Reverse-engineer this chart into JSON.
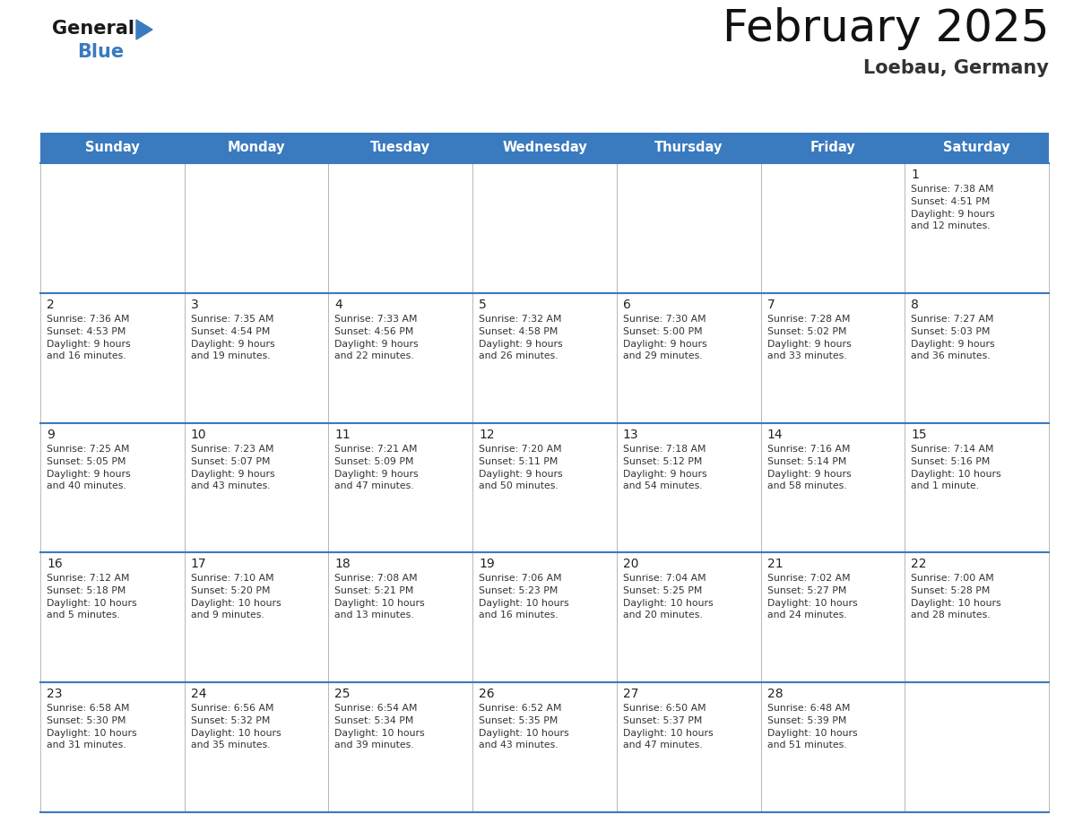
{
  "title": "February 2025",
  "subtitle": "Loebau, Germany",
  "header_bg_color": "#3a7abf",
  "header_text_color": "#ffffff",
  "day_headers": [
    "Sunday",
    "Monday",
    "Tuesday",
    "Wednesday",
    "Thursday",
    "Friday",
    "Saturday"
  ],
  "days": [
    {
      "day": 1,
      "col": 6,
      "row": 0,
      "sunrise": "7:38 AM",
      "sunset": "4:51 PM",
      "daylight": "9 hours and 12 minutes"
    },
    {
      "day": 2,
      "col": 0,
      "row": 1,
      "sunrise": "7:36 AM",
      "sunset": "4:53 PM",
      "daylight": "9 hours and 16 minutes"
    },
    {
      "day": 3,
      "col": 1,
      "row": 1,
      "sunrise": "7:35 AM",
      "sunset": "4:54 PM",
      "daylight": "9 hours and 19 minutes"
    },
    {
      "day": 4,
      "col": 2,
      "row": 1,
      "sunrise": "7:33 AM",
      "sunset": "4:56 PM",
      "daylight": "9 hours and 22 minutes"
    },
    {
      "day": 5,
      "col": 3,
      "row": 1,
      "sunrise": "7:32 AM",
      "sunset": "4:58 PM",
      "daylight": "9 hours and 26 minutes"
    },
    {
      "day": 6,
      "col": 4,
      "row": 1,
      "sunrise": "7:30 AM",
      "sunset": "5:00 PM",
      "daylight": "9 hours and 29 minutes"
    },
    {
      "day": 7,
      "col": 5,
      "row": 1,
      "sunrise": "7:28 AM",
      "sunset": "5:02 PM",
      "daylight": "9 hours and 33 minutes"
    },
    {
      "day": 8,
      "col": 6,
      "row": 1,
      "sunrise": "7:27 AM",
      "sunset": "5:03 PM",
      "daylight": "9 hours and 36 minutes"
    },
    {
      "day": 9,
      "col": 0,
      "row": 2,
      "sunrise": "7:25 AM",
      "sunset": "5:05 PM",
      "daylight": "9 hours and 40 minutes"
    },
    {
      "day": 10,
      "col": 1,
      "row": 2,
      "sunrise": "7:23 AM",
      "sunset": "5:07 PM",
      "daylight": "9 hours and 43 minutes"
    },
    {
      "day": 11,
      "col": 2,
      "row": 2,
      "sunrise": "7:21 AM",
      "sunset": "5:09 PM",
      "daylight": "9 hours and 47 minutes"
    },
    {
      "day": 12,
      "col": 3,
      "row": 2,
      "sunrise": "7:20 AM",
      "sunset": "5:11 PM",
      "daylight": "9 hours and 50 minutes"
    },
    {
      "day": 13,
      "col": 4,
      "row": 2,
      "sunrise": "7:18 AM",
      "sunset": "5:12 PM",
      "daylight": "9 hours and 54 minutes"
    },
    {
      "day": 14,
      "col": 5,
      "row": 2,
      "sunrise": "7:16 AM",
      "sunset": "5:14 PM",
      "daylight": "9 hours and 58 minutes"
    },
    {
      "day": 15,
      "col": 6,
      "row": 2,
      "sunrise": "7:14 AM",
      "sunset": "5:16 PM",
      "daylight": "10 hours and 1 minute"
    },
    {
      "day": 16,
      "col": 0,
      "row": 3,
      "sunrise": "7:12 AM",
      "sunset": "5:18 PM",
      "daylight": "10 hours and 5 minutes"
    },
    {
      "day": 17,
      "col": 1,
      "row": 3,
      "sunrise": "7:10 AM",
      "sunset": "5:20 PM",
      "daylight": "10 hours and 9 minutes"
    },
    {
      "day": 18,
      "col": 2,
      "row": 3,
      "sunrise": "7:08 AM",
      "sunset": "5:21 PM",
      "daylight": "10 hours and 13 minutes"
    },
    {
      "day": 19,
      "col": 3,
      "row": 3,
      "sunrise": "7:06 AM",
      "sunset": "5:23 PM",
      "daylight": "10 hours and 16 minutes"
    },
    {
      "day": 20,
      "col": 4,
      "row": 3,
      "sunrise": "7:04 AM",
      "sunset": "5:25 PM",
      "daylight": "10 hours and 20 minutes"
    },
    {
      "day": 21,
      "col": 5,
      "row": 3,
      "sunrise": "7:02 AM",
      "sunset": "5:27 PM",
      "daylight": "10 hours and 24 minutes"
    },
    {
      "day": 22,
      "col": 6,
      "row": 3,
      "sunrise": "7:00 AM",
      "sunset": "5:28 PM",
      "daylight": "10 hours and 28 minutes"
    },
    {
      "day": 23,
      "col": 0,
      "row": 4,
      "sunrise": "6:58 AM",
      "sunset": "5:30 PM",
      "daylight": "10 hours and 31 minutes"
    },
    {
      "day": 24,
      "col": 1,
      "row": 4,
      "sunrise": "6:56 AM",
      "sunset": "5:32 PM",
      "daylight": "10 hours and 35 minutes"
    },
    {
      "day": 25,
      "col": 2,
      "row": 4,
      "sunrise": "6:54 AM",
      "sunset": "5:34 PM",
      "daylight": "10 hours and 39 minutes"
    },
    {
      "day": 26,
      "col": 3,
      "row": 4,
      "sunrise": "6:52 AM",
      "sunset": "5:35 PM",
      "daylight": "10 hours and 43 minutes"
    },
    {
      "day": 27,
      "col": 4,
      "row": 4,
      "sunrise": "6:50 AM",
      "sunset": "5:37 PM",
      "daylight": "10 hours and 47 minutes"
    },
    {
      "day": 28,
      "col": 5,
      "row": 4,
      "sunrise": "6:48 AM",
      "sunset": "5:39 PM",
      "daylight": "10 hours and 51 minutes"
    }
  ],
  "n_rows": 5,
  "n_cols": 7,
  "logo_triangle_color": "#3a7abf",
  "divider_color": "#3a7abf",
  "fig_width": 11.88,
  "fig_height": 9.18,
  "dpi": 100
}
